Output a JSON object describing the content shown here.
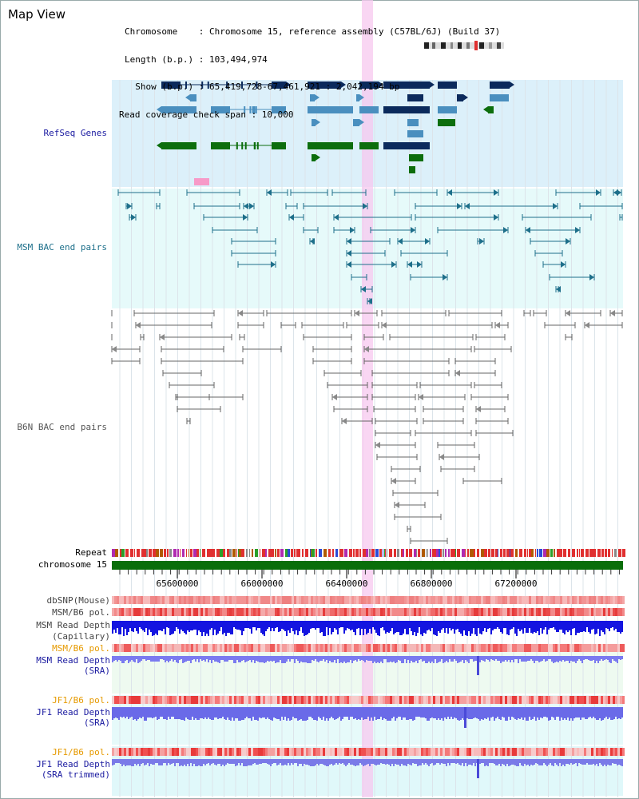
{
  "title": "Map View",
  "info": {
    "chromosome": "Chromosome    : Chromosome 15, reference assembly (C57BL/6J) (Build 37)",
    "length": "Length (b.p.) : 103,494,974",
    "show": "  Show (b.p.) : 65,419,728-67,461,921 : 2,042,194 bp",
    "span": "Read coverage check span : 10,000"
  },
  "labels": {
    "refseq": "RefSeq Genes",
    "msm_bac": "MSM BAC end pairs",
    "b6n_bac": "B6N BAC end pairs",
    "repeat": "Repeat",
    "chromosome": "chromosome 15",
    "dbsnp": "dbSNP(Mouse)",
    "msm_b6_pol_1": "MSM/B6 pol.",
    "msm_read_depth_cap_1": "MSM Read Depth",
    "msm_read_depth_cap_2": "(Capillary)",
    "msm_b6_pol_2": "MSM/B6 pol.",
    "msm_read_depth_sra_1": "MSM Read Depth",
    "msm_read_depth_sra_2": "(SRA)",
    "jf1_b6_pol_1": "JF1/B6 pol.",
    "jf1_read_depth_sra_1": "JF1 Read Depth",
    "jf1_read_depth_sra_2": "(SRA)",
    "jf1_b6_pol_2": "JF1/B6 pol.",
    "jf1_read_depth_trim_1": "JF1 Read Depth",
    "jf1_read_depth_trim_2": "(SRA trimmed)"
  },
  "axis_ticks": [
    "65600000",
    "66000000",
    "66400000",
    "66800000",
    "67200000"
  ],
  "colors": {
    "refseq_bg": "#dcf0fa",
    "msm_bg": "#e6fafa",
    "navy": "#0b2a5c",
    "steel": "#4a8fbf",
    "green": "#0d6e0d",
    "pink": "#f79ac8",
    "highlight": "#f7c8ef",
    "gray_line": "#666666",
    "teal": "#1d6f8a",
    "chromosome": "#0a6e0a",
    "label_blue": "#1a1aa0",
    "label_orange": "#e69a00",
    "label_gray": "#444444"
  }
}
